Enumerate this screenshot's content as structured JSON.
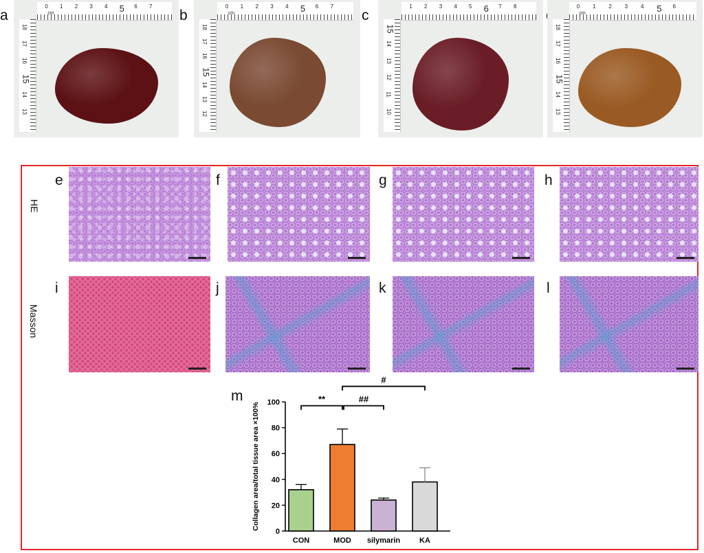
{
  "panels_top": [
    {
      "letter": "a",
      "liver_color": "#5c1114",
      "ruler": {
        "cm_label": "cm",
        "h_numbers": [
          "0",
          "1",
          "2",
          "3",
          "4",
          "5",
          "6",
          "7"
        ],
        "v_numbers": [
          "18",
          "17",
          "16",
          "15",
          "14",
          "13"
        ]
      }
    },
    {
      "letter": "b",
      "liver_color": "#7a4a33",
      "ruler": {
        "cm_label": "cm",
        "h_numbers": [
          "0",
          "1",
          "2",
          "3",
          "4",
          "5",
          "6",
          "7"
        ],
        "v_numbers": [
          "18",
          "17",
          "16",
          "15",
          "14",
          "13",
          "12"
        ]
      }
    },
    {
      "letter": "c",
      "liver_color": "#6a1d26",
      "ruler": {
        "cm_label": "",
        "h_numbers": [
          "1",
          "2",
          "3",
          "4",
          "5",
          "6",
          "7",
          "8"
        ],
        "v_numbers": [
          "15",
          "14",
          "13",
          "12",
          "11",
          "10"
        ]
      }
    },
    {
      "letter": "d",
      "liver_color": "#9a5a23",
      "ruler": {
        "cm_label": "cm",
        "h_numbers": [
          "0",
          "1",
          "2",
          "3",
          "4",
          "5",
          "6"
        ],
        "v_numbers": [
          "18",
          "17",
          "16",
          "15",
          "14",
          "13"
        ]
      }
    }
  ],
  "stains": {
    "he": "HE",
    "masson": "Masson"
  },
  "panels_he": [
    "e",
    "f",
    "g",
    "h"
  ],
  "panels_masson": [
    "i",
    "j",
    "k",
    "l"
  ],
  "chart_letter": "m",
  "chart_data": {
    "type": "bar",
    "categories": [
      "CON",
      "MOD",
      "silymarin",
      "KA"
    ],
    "values": [
      32,
      67,
      24,
      38
    ],
    "errors": [
      4,
      12,
      1.5,
      11
    ],
    "colors": [
      "#a9d18e",
      "#ed7d31",
      "#c9b3d4",
      "#d9d9d9"
    ],
    "ylabel": "Collagen area/total tissue area ×100%",
    "ylim": [
      0,
      100
    ],
    "yticks": [
      0,
      20,
      40,
      60,
      80,
      100
    ],
    "significance": [
      {
        "from": "CON",
        "to": "MOD",
        "label": "**"
      },
      {
        "from": "MOD",
        "to": "silymarin",
        "label": "##"
      },
      {
        "from": "MOD",
        "to": "KA",
        "label": "#"
      }
    ]
  }
}
